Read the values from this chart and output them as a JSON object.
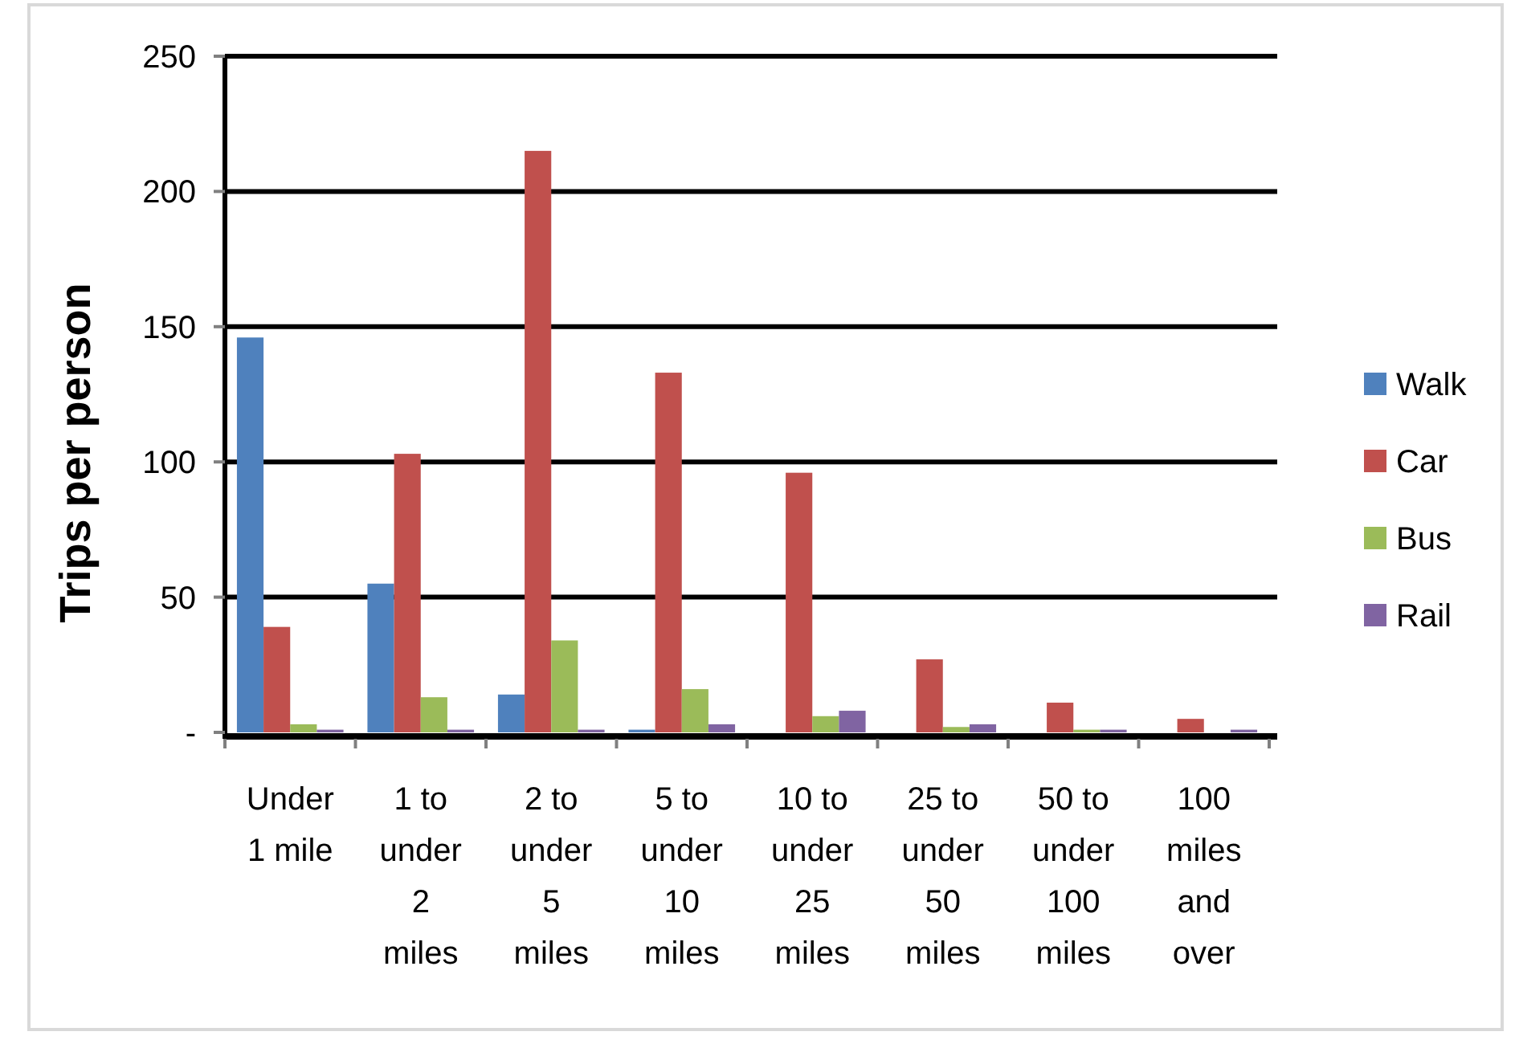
{
  "chart_data": {
    "type": "bar",
    "ylabel": "Trips per person",
    "categories": [
      "Under 1 mile",
      "1 to under 2 miles",
      "2 to under 5 miles",
      "5 to under 10 miles",
      "10 to under 25 miles",
      "25 to under 50 miles",
      "50 to under 100 miles",
      "100 miles and over"
    ],
    "series": [
      {
        "name": "Walk",
        "color": "#4f81bd",
        "values": [
          146,
          55,
          14,
          1,
          0,
          0,
          0,
          0
        ]
      },
      {
        "name": "Car",
        "color": "#c0504d",
        "values": [
          39,
          103,
          215,
          133,
          96,
          27,
          11,
          5
        ]
      },
      {
        "name": "Bus",
        "color": "#9bbb59",
        "values": [
          3,
          13,
          34,
          16,
          6,
          2,
          1,
          0
        ]
      },
      {
        "name": "Rail",
        "color": "#8064a2",
        "values": [
          1,
          1,
          1,
          3,
          8,
          3,
          1,
          1
        ]
      }
    ],
    "ylim": [
      0,
      250
    ],
    "yticks": [
      {
        "value": 0,
        "label": "-"
      },
      50,
      100,
      150,
      200,
      250
    ],
    "grid": "y",
    "legend": "right"
  }
}
